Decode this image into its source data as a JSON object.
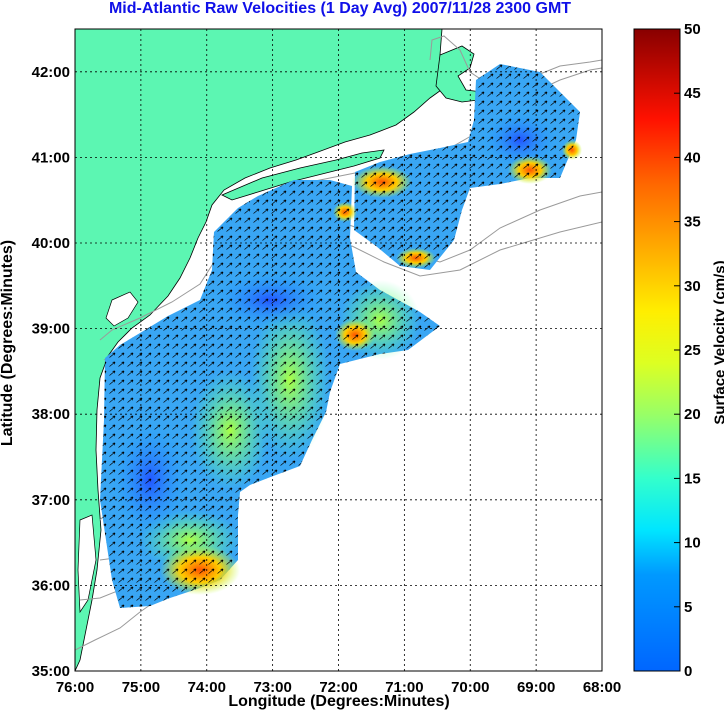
{
  "title": "Mid-Atlantic Raw Velocities (1 Day Avg) 2007/11/28 2300 GMT",
  "x_axis": {
    "label": "Longitude (Degrees:Minutes)",
    "ticks": [
      "76:00",
      "75:00",
      "74:00",
      "73:00",
      "72:00",
      "71:00",
      "70:00",
      "69:00",
      "68:00"
    ]
  },
  "y_axis": {
    "label": "Latitude (Degrees:Minutes)",
    "ticks": [
      "35:00",
      "36:00",
      "37:00",
      "38:00",
      "39:00",
      "40:00",
      "41:00",
      "42:00"
    ]
  },
  "colorbar": {
    "label": "Surface Velocity (cm/s)",
    "ticks": [
      "0",
      "5",
      "10",
      "15",
      "20",
      "25",
      "30",
      "35",
      "40",
      "45",
      "50"
    ],
    "min": 0,
    "max": 50,
    "colormap": "jet"
  },
  "colors": {
    "title": "#1010e8",
    "land": "#5cf6b2",
    "coastline": "#000000",
    "bathymetry_contours": "#9a9a9a",
    "grid": "#000000",
    "vectors": "#000000"
  },
  "map": {
    "lon_range": [
      -76,
      -68
    ],
    "lat_range": [
      35,
      42.5
    ],
    "grid": "dotted",
    "data_field": "surface current vectors over color-shaded speed"
  }
}
